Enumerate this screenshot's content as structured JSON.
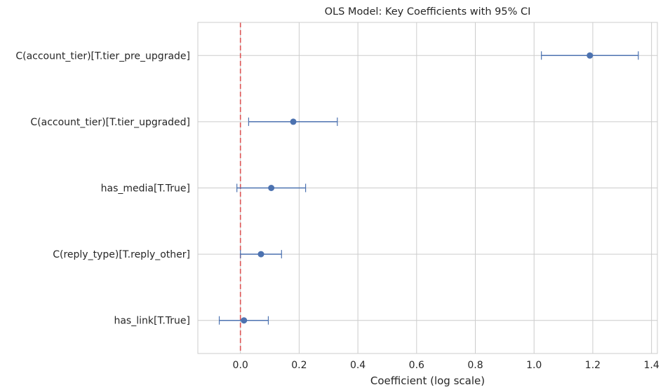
{
  "chart_data": {
    "type": "errorbar",
    "title": "OLS Model: Key Coefficients with 95% CI",
    "xlabel": "Coefficient (log scale)",
    "ylabel": "",
    "xlim": [
      -0.145,
      1.42
    ],
    "xticks": [
      0.0,
      0.2,
      0.4,
      0.6,
      0.8,
      1.0,
      1.2,
      1.4
    ],
    "xtick_labels": [
      "0.0",
      "0.2",
      "0.4",
      "0.6",
      "0.8",
      "1.0",
      "1.2",
      "1.4"
    ],
    "grid": true,
    "reference_line": {
      "x": 0,
      "color": "#dd5555",
      "style": "dashed"
    },
    "marker_color": "#4c72b0",
    "categories": [
      "C(account_tier)[T.tier_pre_upgrade]",
      "C(account_tier)[T.tier_upgraded]",
      "has_media[T.True]",
      "C(reply_type)[T.reply_other]",
      "has_link[T.True]"
    ],
    "points": [
      {
        "label": "C(account_tier)[T.tier_pre_upgrade]",
        "estimate": 1.19,
        "ci_low": 1.025,
        "ci_high": 1.355
      },
      {
        "label": "C(account_tier)[T.tier_upgraded]",
        "estimate": 0.18,
        "ci_low": 0.028,
        "ci_high": 0.33
      },
      {
        "label": "has_media[T.True]",
        "estimate": 0.105,
        "ci_low": -0.012,
        "ci_high": 0.222
      },
      {
        "label": "C(reply_type)[T.reply_other]",
        "estimate": 0.07,
        "ci_low": 0.0,
        "ci_high": 0.14
      },
      {
        "label": "has_link[T.True]",
        "estimate": 0.012,
        "ci_low": -0.072,
        "ci_high": 0.095
      }
    ]
  }
}
